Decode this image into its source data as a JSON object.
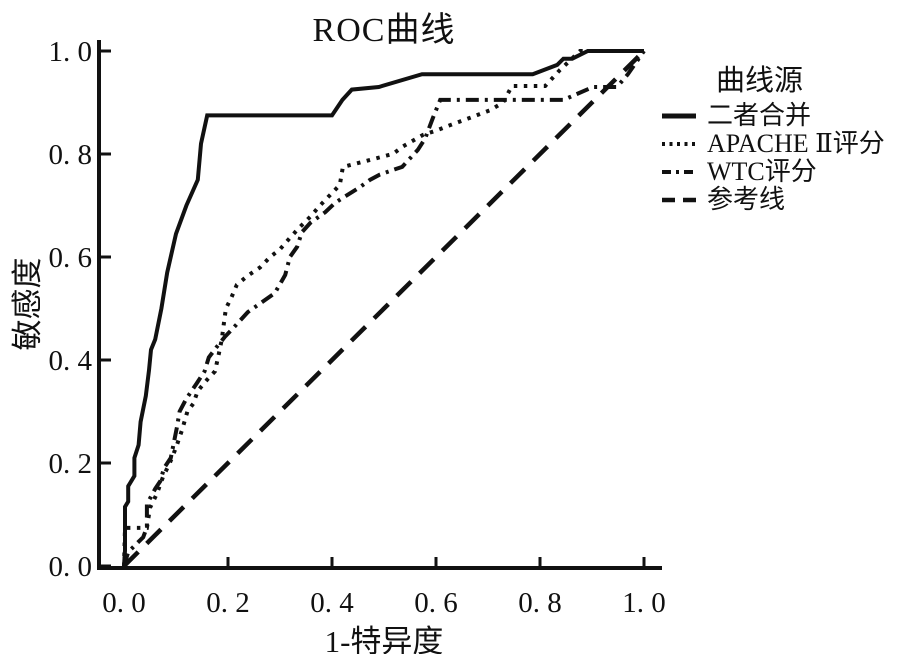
{
  "chart_data": {
    "type": "line",
    "title": "ROC曲线",
    "xlabel": "1-特异度",
    "ylabel": "敏感度",
    "xlim": [
      0.0,
      1.0
    ],
    "ylim": [
      0.0,
      1.0
    ],
    "grid": false,
    "x_ticks": {
      "values": [
        0,
        0.2,
        0.4,
        0.6,
        0.8,
        1.0
      ],
      "labels": [
        "0. 0",
        "0. 2",
        "0. 4",
        "0. 6",
        "0. 8",
        "1. 0"
      ]
    },
    "y_ticks": {
      "values": [
        0,
        0.2,
        0.4,
        0.6,
        0.8,
        1.0
      ],
      "labels": [
        "0. 0",
        "0. 2",
        "0. 4",
        "0. 6",
        "0. 8",
        "1. 0"
      ]
    },
    "legend": {
      "title": "曲线源",
      "position": "right"
    },
    "series": [
      {
        "id": "curve-combined",
        "name": "二者合并",
        "style": "solid",
        "points": [
          [
            0,
            0
          ],
          [
            0.002,
            0.03
          ],
          [
            0.002,
            0.115
          ],
          [
            0.008,
            0.125
          ],
          [
            0.008,
            0.155
          ],
          [
            0.02,
            0.175
          ],
          [
            0.02,
            0.21
          ],
          [
            0.028,
            0.235
          ],
          [
            0.032,
            0.28
          ],
          [
            0.042,
            0.33
          ],
          [
            0.048,
            0.38
          ],
          [
            0.052,
            0.42
          ],
          [
            0.06,
            0.44
          ],
          [
            0.072,
            0.5
          ],
          [
            0.083,
            0.57
          ],
          [
            0.1,
            0.645
          ],
          [
            0.12,
            0.7
          ],
          [
            0.142,
            0.75
          ],
          [
            0.148,
            0.82
          ],
          [
            0.16,
            0.875
          ],
          [
            0.4,
            0.875
          ],
          [
            0.42,
            0.905
          ],
          [
            0.438,
            0.925
          ],
          [
            0.49,
            0.93
          ],
          [
            0.573,
            0.955
          ],
          [
            0.786,
            0.955
          ],
          [
            0.833,
            0.973
          ],
          [
            0.845,
            0.985
          ],
          [
            0.862,
            0.985
          ],
          [
            0.892,
            1
          ],
          [
            1,
            1
          ]
        ]
      },
      {
        "id": "curve-apache-ii-score",
        "name": "APACHE Ⅱ评分",
        "style": "dotted",
        "points": [
          [
            0,
            0
          ],
          [
            0.002,
            0.074
          ],
          [
            0.044,
            0.074
          ],
          [
            0.05,
            0.113
          ],
          [
            0.063,
            0.14
          ],
          [
            0.075,
            0.173
          ],
          [
            0.088,
            0.2
          ],
          [
            0.1,
            0.23
          ],
          [
            0.112,
            0.265
          ],
          [
            0.122,
            0.3
          ],
          [
            0.133,
            0.315
          ],
          [
            0.142,
            0.34
          ],
          [
            0.16,
            0.362
          ],
          [
            0.175,
            0.378
          ],
          [
            0.182,
            0.41
          ],
          [
            0.188,
            0.44
          ],
          [
            0.192,
            0.47
          ],
          [
            0.196,
            0.5
          ],
          [
            0.206,
            0.52
          ],
          [
            0.217,
            0.546
          ],
          [
            0.237,
            0.563
          ],
          [
            0.262,
            0.58
          ],
          [
            0.281,
            0.6
          ],
          [
            0.3,
            0.615
          ],
          [
            0.319,
            0.637
          ],
          [
            0.338,
            0.658
          ],
          [
            0.358,
            0.678
          ],
          [
            0.377,
            0.7
          ],
          [
            0.396,
            0.72
          ],
          [
            0.415,
            0.74
          ],
          [
            0.421,
            0.775
          ],
          [
            0.517,
            0.8
          ],
          [
            0.537,
            0.815
          ],
          [
            0.575,
            0.837
          ],
          [
            0.602,
            0.846
          ],
          [
            0.627,
            0.856
          ],
          [
            0.665,
            0.87
          ],
          [
            0.704,
            0.885
          ],
          [
            0.729,
            0.9
          ],
          [
            0.746,
            0.932
          ],
          [
            0.81,
            0.932
          ],
          [
            0.838,
            0.963
          ],
          [
            0.877,
            1
          ],
          [
            1,
            1
          ]
        ]
      },
      {
        "id": "curve-wtc-score",
        "name": "WTC评分",
        "style": "dashdot",
        "points": [
          [
            0,
            0
          ],
          [
            0.008,
            0.027
          ],
          [
            0.037,
            0.056
          ],
          [
            0.044,
            0.075
          ],
          [
            0.044,
            0.12
          ],
          [
            0.06,
            0.15
          ],
          [
            0.07,
            0.165
          ],
          [
            0.077,
            0.19
          ],
          [
            0.09,
            0.21
          ],
          [
            0.096,
            0.24
          ],
          [
            0.102,
            0.27
          ],
          [
            0.107,
            0.3
          ],
          [
            0.12,
            0.325
          ],
          [
            0.14,
            0.355
          ],
          [
            0.155,
            0.378
          ],
          [
            0.163,
            0.405
          ],
          [
            0.178,
            0.425
          ],
          [
            0.194,
            0.445
          ],
          [
            0.21,
            0.462
          ],
          [
            0.238,
            0.493
          ],
          [
            0.265,
            0.512
          ],
          [
            0.29,
            0.53
          ],
          [
            0.31,
            0.565
          ],
          [
            0.319,
            0.6
          ],
          [
            0.333,
            0.62
          ],
          [
            0.342,
            0.648
          ],
          [
            0.358,
            0.666
          ],
          [
            0.387,
            0.687
          ],
          [
            0.406,
            0.705
          ],
          [
            0.421,
            0.715
          ],
          [
            0.454,
            0.736
          ],
          [
            0.473,
            0.75
          ],
          [
            0.492,
            0.76
          ],
          [
            0.517,
            0.769
          ],
          [
            0.535,
            0.775
          ],
          [
            0.565,
            0.808
          ],
          [
            0.579,
            0.83
          ],
          [
            0.594,
            0.87
          ],
          [
            0.608,
            0.905
          ],
          [
            0.845,
            0.905
          ],
          [
            0.902,
            0.93
          ],
          [
            0.948,
            0.93
          ],
          [
            0.969,
            0.955
          ],
          [
            1,
            1
          ]
        ]
      },
      {
        "id": "curve-reference-line",
        "name": "参考线",
        "style": "dashed",
        "points": [
          [
            0,
            0
          ],
          [
            1,
            1
          ]
        ]
      }
    ]
  },
  "colors": {
    "ink": "#111111",
    "background": "#ffffff"
  }
}
